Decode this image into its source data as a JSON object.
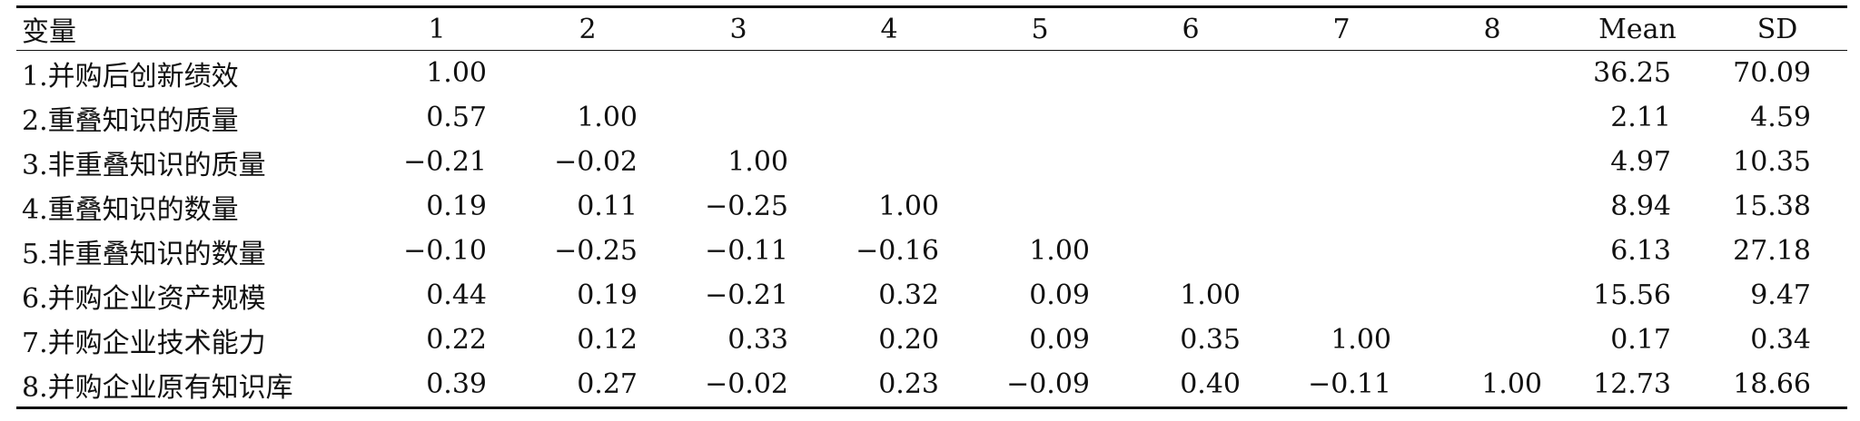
{
  "table": {
    "headers": [
      "变量",
      "1",
      "2",
      "3",
      "4",
      "5",
      "6",
      "7",
      "8",
      "Mean",
      "SD"
    ],
    "rows": [
      {
        "label": "1.并购后创新绩效",
        "cells": [
          "1.00",
          "",
          "",
          "",
          "",
          "",
          "",
          ""
        ],
        "mean": "36.25",
        "sd": "70.09"
      },
      {
        "label": "2.重叠知识的质量",
        "cells": [
          "0.57",
          "1.00",
          "",
          "",
          "",
          "",
          "",
          ""
        ],
        "mean": "2.11",
        "sd": "4.59"
      },
      {
        "label": "3.非重叠知识的质量",
        "cells": [
          "−0.21",
          "−0.02",
          "1.00",
          "",
          "",
          "",
          "",
          ""
        ],
        "mean": "4.97",
        "sd": "10.35"
      },
      {
        "label": "4.重叠知识的数量",
        "cells": [
          "0.19",
          "0.11",
          "−0.25",
          "1.00",
          "",
          "",
          "",
          ""
        ],
        "mean": "8.94",
        "sd": "15.38"
      },
      {
        "label": "5.非重叠知识的数量",
        "cells": [
          "−0.10",
          "−0.25",
          "−0.11",
          "−0.16",
          "1.00",
          "",
          "",
          ""
        ],
        "mean": "6.13",
        "sd": "27.18"
      },
      {
        "label": "6.并购企业资产规模",
        "cells": [
          "0.44",
          "0.19",
          "−0.21",
          "0.32",
          "0.09",
          "1.00",
          "",
          ""
        ],
        "mean": "15.56",
        "sd": "9.47"
      },
      {
        "label": "7.并购企业技术能力",
        "cells": [
          "0.22",
          "0.12",
          "0.33",
          "0.20",
          "0.09",
          "0.35",
          "1.00",
          ""
        ],
        "mean": "0.17",
        "sd": "0.34"
      },
      {
        "label": "8.并购企业原有知识库",
        "cells": [
          "0.39",
          "0.27",
          "−0.02",
          "0.23",
          "−0.09",
          "0.40",
          "−0.11",
          "1.00"
        ],
        "mean": "12.73",
        "sd": "18.66"
      }
    ]
  }
}
